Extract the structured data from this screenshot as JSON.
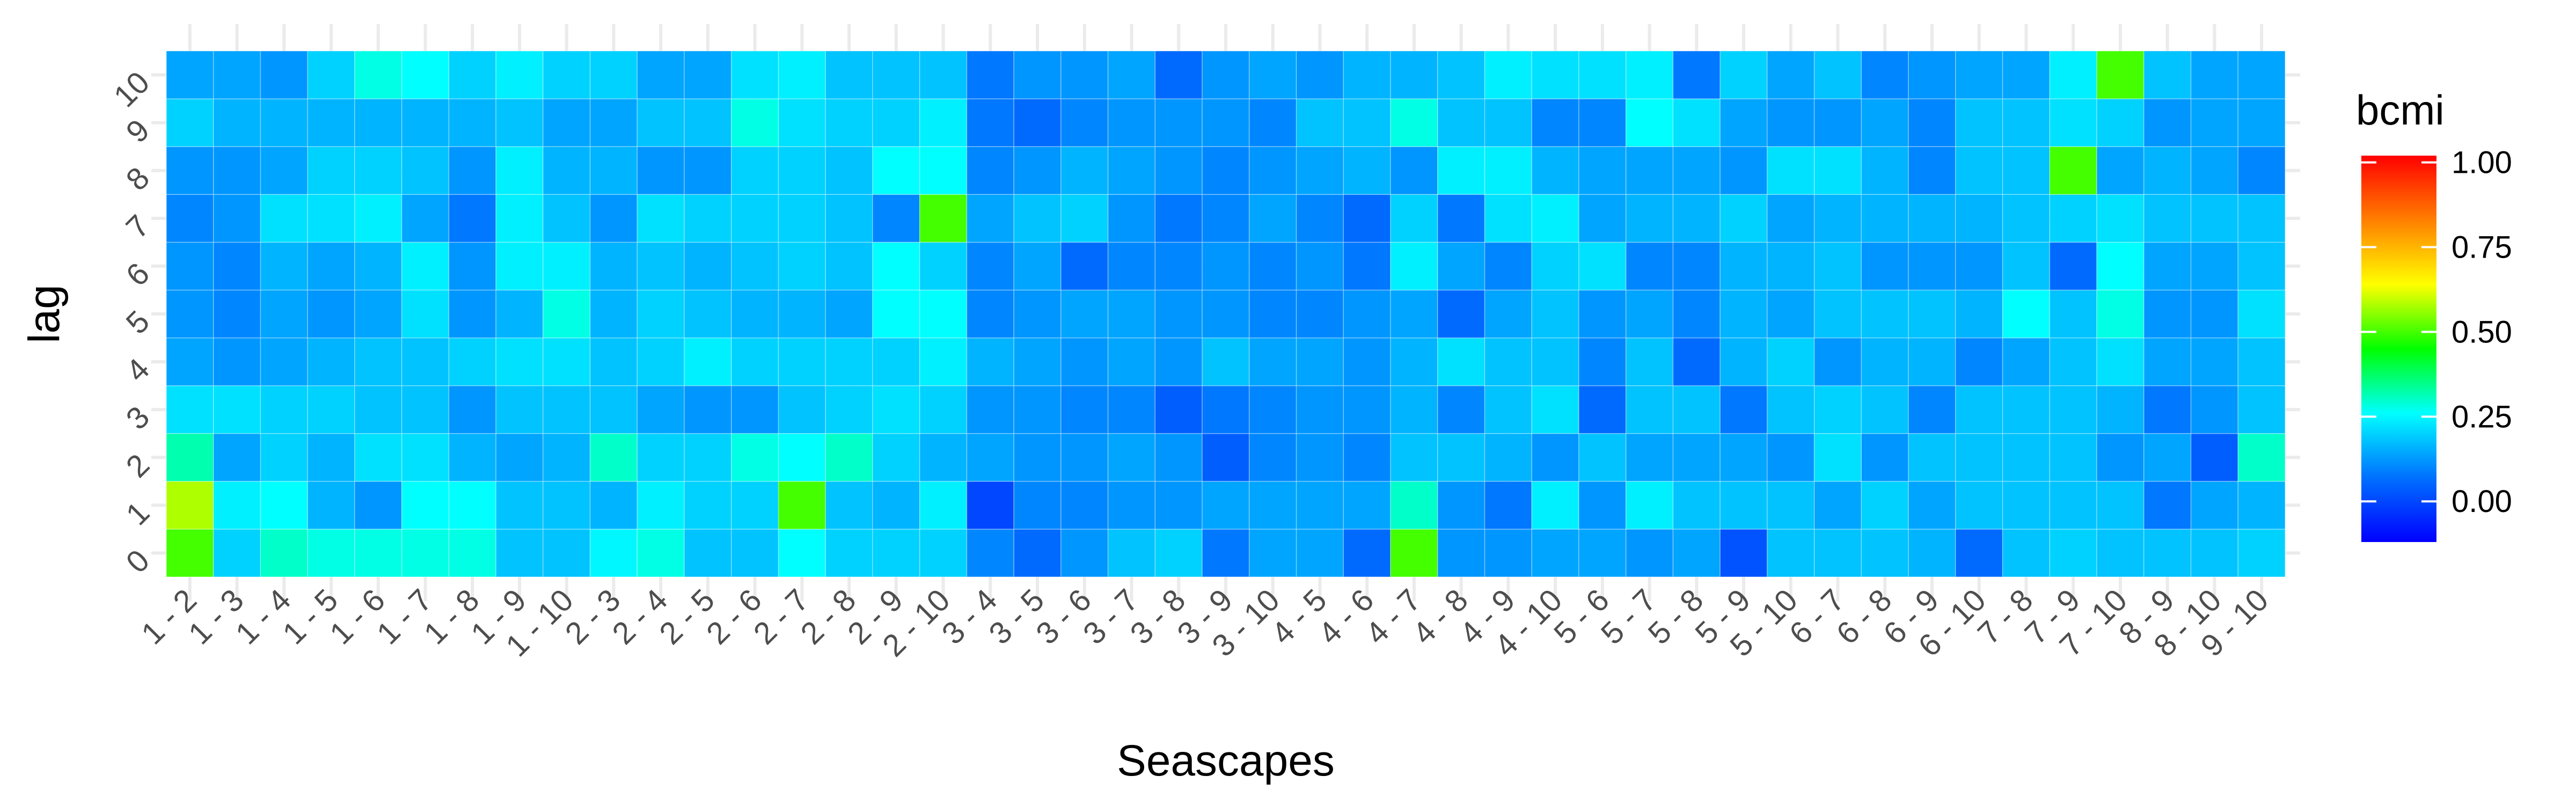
{
  "chart_data": {
    "type": "heatmap",
    "title": "",
    "xlabel": "Seascapes",
    "ylabel": "lag",
    "x_categories": [
      "1 - 2",
      "1 - 3",
      "1 - 4",
      "1 - 5",
      "1 - 6",
      "1 - 7",
      "1 - 8",
      "1 - 9",
      "1 - 10",
      "2 - 3",
      "2 - 4",
      "2 - 5",
      "2 - 6",
      "2 - 7",
      "2 - 8",
      "2 - 9",
      "2 - 10",
      "3 - 4",
      "3 - 5",
      "3 - 6",
      "3 - 7",
      "3 - 8",
      "3 - 9",
      "3 - 10",
      "4 - 5",
      "4 - 6",
      "4 - 7",
      "4 - 8",
      "4 - 9",
      "4 - 10",
      "5 - 6",
      "5 - 7",
      "5 - 8",
      "5 - 9",
      "5 - 10",
      "6 - 7",
      "6 - 8",
      "6 - 9",
      "6 - 10",
      "7 - 8",
      "7 - 9",
      "7 - 10",
      "8 - 9",
      "8 - 10",
      "9 - 10"
    ],
    "y_categories": [
      "0",
      "1",
      "2",
      "3",
      "4",
      "5",
      "6",
      "7",
      "8",
      "9",
      "10"
    ],
    "values_by_lag": [
      [
        0.5,
        0.2,
        0.3,
        0.28,
        0.28,
        0.28,
        0.28,
        0.18,
        0.18,
        0.25,
        0.28,
        0.18,
        0.18,
        0.26,
        0.2,
        0.2,
        0.2,
        0.1,
        0.06,
        0.12,
        0.18,
        0.2,
        0.08,
        0.14,
        0.14,
        0.06,
        0.5,
        0.12,
        0.12,
        0.14,
        0.14,
        0.12,
        0.14,
        0.02,
        0.18,
        0.18,
        0.18,
        0.16,
        0.06,
        0.18,
        0.2,
        0.18,
        0.18,
        0.18,
        0.2
      ],
      [
        0.58,
        0.24,
        0.26,
        0.16,
        0.12,
        0.26,
        0.26,
        0.18,
        0.18,
        0.16,
        0.24,
        0.2,
        0.2,
        0.5,
        0.18,
        0.16,
        0.24,
        0.0,
        0.1,
        0.1,
        0.12,
        0.12,
        0.14,
        0.14,
        0.14,
        0.14,
        0.3,
        0.12,
        0.08,
        0.24,
        0.12,
        0.24,
        0.18,
        0.18,
        0.18,
        0.14,
        0.2,
        0.14,
        0.18,
        0.18,
        0.18,
        0.18,
        0.08,
        0.14,
        0.16
      ],
      [
        0.32,
        0.14,
        0.2,
        0.16,
        0.22,
        0.22,
        0.16,
        0.14,
        0.16,
        0.3,
        0.2,
        0.2,
        0.28,
        0.26,
        0.3,
        0.2,
        0.16,
        0.14,
        0.12,
        0.12,
        0.14,
        0.12,
        0.04,
        0.1,
        0.12,
        0.1,
        0.18,
        0.18,
        0.16,
        0.12,
        0.18,
        0.14,
        0.14,
        0.14,
        0.12,
        0.22,
        0.12,
        0.18,
        0.18,
        0.18,
        0.18,
        0.12,
        0.14,
        0.04,
        0.3
      ],
      [
        0.22,
        0.22,
        0.2,
        0.2,
        0.18,
        0.18,
        0.12,
        0.18,
        0.18,
        0.18,
        0.14,
        0.12,
        0.12,
        0.18,
        0.2,
        0.22,
        0.2,
        0.12,
        0.12,
        0.1,
        0.1,
        0.04,
        0.08,
        0.1,
        0.12,
        0.12,
        0.16,
        0.1,
        0.18,
        0.22,
        0.06,
        0.18,
        0.18,
        0.08,
        0.18,
        0.2,
        0.18,
        0.1,
        0.18,
        0.18,
        0.18,
        0.16,
        0.08,
        0.12,
        0.18
      ],
      [
        0.14,
        0.12,
        0.14,
        0.16,
        0.18,
        0.18,
        0.2,
        0.22,
        0.22,
        0.18,
        0.2,
        0.24,
        0.2,
        0.2,
        0.2,
        0.2,
        0.24,
        0.16,
        0.14,
        0.12,
        0.14,
        0.12,
        0.18,
        0.14,
        0.14,
        0.12,
        0.16,
        0.22,
        0.18,
        0.18,
        0.1,
        0.18,
        0.06,
        0.16,
        0.2,
        0.12,
        0.16,
        0.16,
        0.1,
        0.14,
        0.18,
        0.22,
        0.14,
        0.14,
        0.18
      ],
      [
        0.12,
        0.1,
        0.14,
        0.12,
        0.14,
        0.22,
        0.12,
        0.16,
        0.28,
        0.16,
        0.2,
        0.18,
        0.16,
        0.16,
        0.14,
        0.26,
        0.26,
        0.1,
        0.12,
        0.14,
        0.14,
        0.12,
        0.12,
        0.1,
        0.1,
        0.12,
        0.14,
        0.06,
        0.14,
        0.18,
        0.12,
        0.14,
        0.1,
        0.16,
        0.14,
        0.18,
        0.18,
        0.18,
        0.16,
        0.26,
        0.18,
        0.28,
        0.12,
        0.12,
        0.22
      ],
      [
        0.12,
        0.1,
        0.16,
        0.14,
        0.16,
        0.24,
        0.12,
        0.24,
        0.24,
        0.16,
        0.18,
        0.16,
        0.18,
        0.2,
        0.18,
        0.26,
        0.2,
        0.1,
        0.14,
        0.06,
        0.1,
        0.1,
        0.12,
        0.1,
        0.12,
        0.08,
        0.24,
        0.14,
        0.1,
        0.2,
        0.22,
        0.1,
        0.1,
        0.16,
        0.16,
        0.18,
        0.12,
        0.12,
        0.12,
        0.18,
        0.06,
        0.26,
        0.14,
        0.14,
        0.18
      ],
      [
        0.1,
        0.12,
        0.22,
        0.22,
        0.24,
        0.14,
        0.08,
        0.24,
        0.18,
        0.12,
        0.22,
        0.2,
        0.2,
        0.2,
        0.18,
        0.1,
        0.5,
        0.14,
        0.18,
        0.2,
        0.12,
        0.08,
        0.1,
        0.14,
        0.1,
        0.06,
        0.2,
        0.08,
        0.22,
        0.24,
        0.14,
        0.16,
        0.16,
        0.2,
        0.14,
        0.16,
        0.16,
        0.16,
        0.16,
        0.18,
        0.2,
        0.22,
        0.18,
        0.18,
        0.18
      ],
      [
        0.12,
        0.12,
        0.14,
        0.2,
        0.2,
        0.18,
        0.12,
        0.24,
        0.16,
        0.16,
        0.12,
        0.12,
        0.2,
        0.2,
        0.18,
        0.26,
        0.26,
        0.1,
        0.12,
        0.16,
        0.14,
        0.12,
        0.1,
        0.12,
        0.14,
        0.16,
        0.12,
        0.24,
        0.24,
        0.16,
        0.14,
        0.14,
        0.14,
        0.12,
        0.22,
        0.22,
        0.16,
        0.1,
        0.18,
        0.18,
        0.5,
        0.14,
        0.16,
        0.14,
        0.1
      ],
      [
        0.2,
        0.16,
        0.16,
        0.16,
        0.16,
        0.16,
        0.16,
        0.18,
        0.14,
        0.14,
        0.18,
        0.18,
        0.28,
        0.22,
        0.2,
        0.2,
        0.24,
        0.08,
        0.06,
        0.1,
        0.12,
        0.12,
        0.12,
        0.1,
        0.18,
        0.18,
        0.28,
        0.18,
        0.18,
        0.1,
        0.1,
        0.26,
        0.22,
        0.14,
        0.12,
        0.12,
        0.14,
        0.1,
        0.18,
        0.18,
        0.22,
        0.2,
        0.12,
        0.14,
        0.14
      ],
      [
        0.14,
        0.14,
        0.12,
        0.2,
        0.28,
        0.26,
        0.2,
        0.24,
        0.2,
        0.2,
        0.14,
        0.14,
        0.22,
        0.24,
        0.18,
        0.18,
        0.18,
        0.08,
        0.12,
        0.12,
        0.14,
        0.06,
        0.12,
        0.14,
        0.12,
        0.16,
        0.16,
        0.18,
        0.24,
        0.22,
        0.22,
        0.24,
        0.08,
        0.2,
        0.14,
        0.18,
        0.1,
        0.12,
        0.14,
        0.14,
        0.24,
        0.5,
        0.18,
        0.14,
        0.14
      ]
    ],
    "legend": {
      "title": "bcmi",
      "ticks": [
        "0.00",
        "0.25",
        "0.50",
        "0.75",
        "1.00"
      ],
      "tick_values": [
        0.0,
        0.25,
        0.5,
        0.75,
        1.0
      ],
      "range": [
        -0.12,
        1.02
      ],
      "colors": [
        "#0000ff",
        "#0070ff",
        "#00ffff",
        "#00ff00",
        "#ffff00",
        "#ff7f00",
        "#ff0000"
      ],
      "placement": "right"
    },
    "grid": true
  }
}
